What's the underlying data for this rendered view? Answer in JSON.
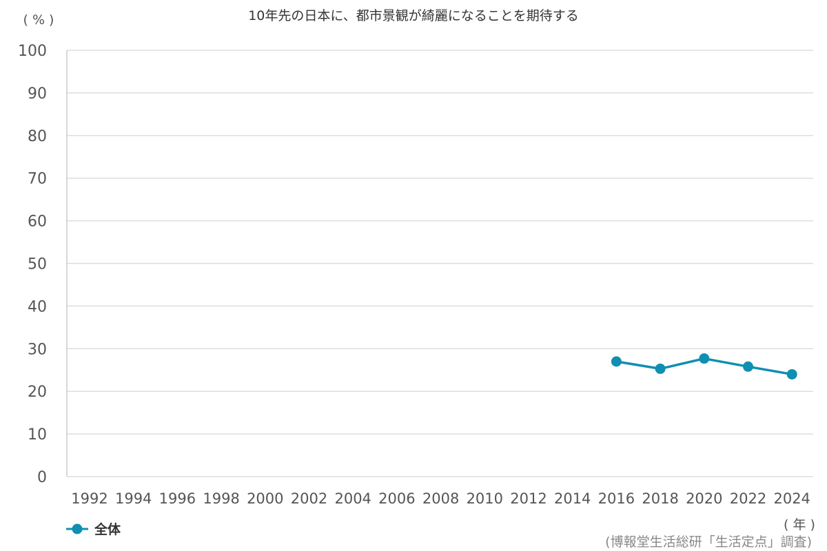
{
  "chart_data": {
    "type": "line",
    "title": "10年先の日本に、都市景観が綺麗になることを期待する",
    "y_unit_label": "( % )",
    "x_unit_label": "( 年 )",
    "source": "(博報堂生活総研「生活定点」調査)",
    "ylim": [
      0,
      100
    ],
    "yticks": [
      "100",
      "90",
      "80",
      "70",
      "60",
      "50",
      "40",
      "30",
      "20",
      "10",
      "0"
    ],
    "categories": [
      "1992",
      "1994",
      "1996",
      "1998",
      "2000",
      "2002",
      "2004",
      "2006",
      "2008",
      "2010",
      "2012",
      "2014",
      "2016",
      "2018",
      "2020",
      "2022",
      "2024"
    ],
    "series": [
      {
        "name": "全体",
        "color": "#0f8fb1",
        "values": [
          null,
          null,
          null,
          null,
          null,
          null,
          null,
          null,
          null,
          null,
          null,
          null,
          27.0,
          25.3,
          27.7,
          25.8,
          24.0
        ]
      }
    ],
    "grid": true,
    "legend_position": "bottom-left"
  }
}
